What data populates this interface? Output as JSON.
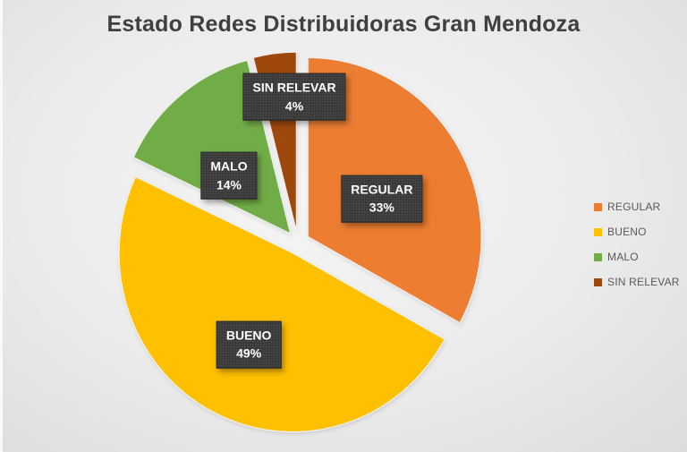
{
  "title": "Estado Redes Distribuidoras Gran Mendoza",
  "chart_data": {
    "type": "pie",
    "title": "Estado Redes Distribuidoras Gran Mendoza",
    "categories": [
      "REGULAR",
      "BUENO",
      "MALO",
      "SIN RELEVAR"
    ],
    "values": [
      33,
      49,
      14,
      4
    ],
    "unit": "%",
    "series_colors": [
      "#ED7D31",
      "#FFC000",
      "#70AD47",
      "#9E480E"
    ],
    "data_labels": [
      {
        "text": "REGULAR",
        "value_text": "33%"
      },
      {
        "text": "BUENO",
        "value_text": "49%"
      },
      {
        "text": "MALO",
        "value_text": "14%"
      },
      {
        "text": "SIN RELEVAR",
        "value_text": "4%"
      }
    ],
    "legend": {
      "position": "right",
      "entries": [
        "REGULAR",
        "BUENO",
        "MALO",
        "SIN RELEVAR"
      ]
    },
    "style": {
      "exploded": true,
      "start_angle_deg": 0,
      "direction": "clockwise",
      "label_box_color": "#373737",
      "label_text_color": "#FFFFFF",
      "background_color": "#EBEBEB",
      "title_color": "#3F3F3F"
    }
  }
}
